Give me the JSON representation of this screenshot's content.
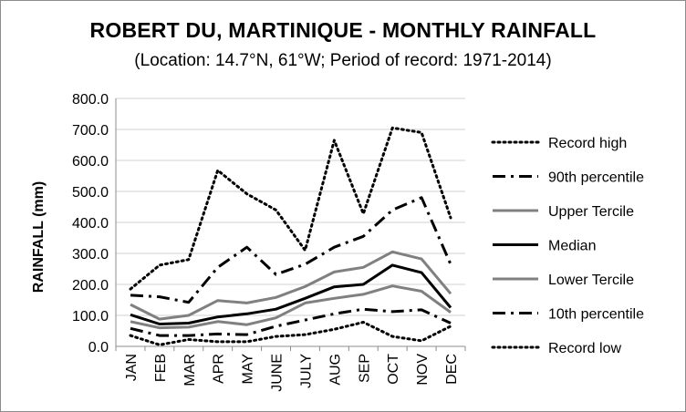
{
  "chart_data": {
    "type": "line",
    "title": "ROBERT DU, MARTINIQUE - MONTHLY RAINFALL",
    "subtitle": "(Location: 14.7°N, 61°W; Period of record: 1971-2014)",
    "ylabel": "RAINFALL (mm)",
    "xlabel": "",
    "ylim": [
      0,
      800
    ],
    "yticks": [
      "0.0",
      "100.0",
      "200.0",
      "300.0",
      "400.0",
      "500.0",
      "600.0",
      "700.0",
      "800.0"
    ],
    "categories": [
      "JAN",
      "FEB",
      "MAR",
      "APR",
      "MAY",
      "JUNE",
      "JULY",
      "AUG",
      "SEP",
      "OCT",
      "NOV",
      "DEC"
    ],
    "grid": "horizontal",
    "legend": "right",
    "series": [
      {
        "name": "Record high",
        "color": "#000000",
        "style": "dotted",
        "values": [
          185,
          262,
          280,
          568,
          492,
          440,
          310,
          665,
          428,
          705,
          690,
          415
        ]
      },
      {
        "name": "90th percentile",
        "color": "#000000",
        "style": "dashdot",
        "values": [
          165,
          160,
          142,
          255,
          320,
          232,
          265,
          320,
          355,
          440,
          480,
          265
        ]
      },
      {
        "name": "Upper Tercile",
        "color": "#808080",
        "style": "solid",
        "values": [
          135,
          88,
          100,
          148,
          140,
          158,
          193,
          240,
          255,
          305,
          282,
          170
        ]
      },
      {
        "name": "Median",
        "color": "#000000",
        "style": "solid",
        "values": [
          102,
          72,
          75,
          95,
          105,
          120,
          155,
          192,
          200,
          262,
          238,
          125
        ]
      },
      {
        "name": "Lower Tercile",
        "color": "#808080",
        "style": "solid",
        "values": [
          80,
          60,
          62,
          80,
          70,
          92,
          140,
          155,
          168,
          195,
          178,
          110
        ]
      },
      {
        "name": "10th percentile",
        "color": "#000000",
        "style": "dashdot",
        "values": [
          58,
          35,
          35,
          40,
          38,
          65,
          85,
          105,
          120,
          112,
          118,
          75
        ]
      },
      {
        "name": "Record low",
        "color": "#000000",
        "style": "dotted",
        "values": [
          35,
          5,
          22,
          15,
          15,
          32,
          38,
          55,
          78,
          32,
          18,
          65
        ]
      }
    ]
  }
}
